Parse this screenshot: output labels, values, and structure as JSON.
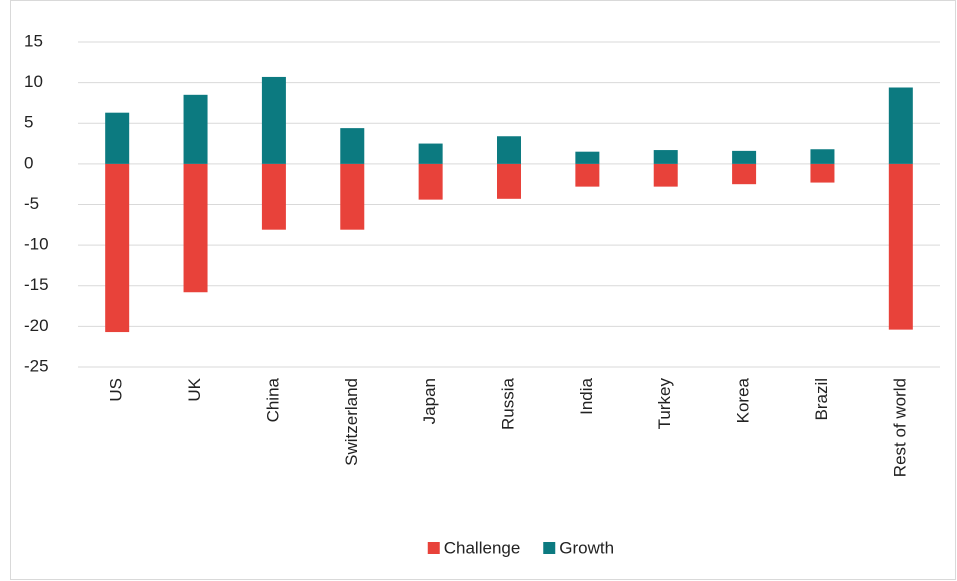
{
  "chart_data": {
    "type": "bar",
    "stacked": true,
    "categories": [
      "US",
      "UK",
      "China",
      "Switzerland",
      "Japan",
      "Russia",
      "India",
      "Turkey",
      "Korea",
      "Brazil",
      "Rest of world"
    ],
    "series": [
      {
        "name": "Challenge",
        "color": "#e8423a",
        "values": [
          -20.7,
          -15.8,
          -8.1,
          -8.1,
          -4.4,
          -4.3,
          -2.8,
          -2.8,
          -2.5,
          -2.3,
          -20.4
        ]
      },
      {
        "name": "Growth",
        "color": "#0c7a80",
        "values": [
          6.3,
          8.5,
          10.7,
          4.4,
          2.5,
          3.4,
          1.5,
          1.7,
          1.6,
          1.8,
          9.4
        ]
      }
    ],
    "ylim": [
      -25,
      15
    ],
    "yticks": [
      -25,
      -20,
      -15,
      -10,
      -5,
      0,
      5,
      10,
      15
    ],
    "grid": true,
    "legend": "bottom"
  }
}
